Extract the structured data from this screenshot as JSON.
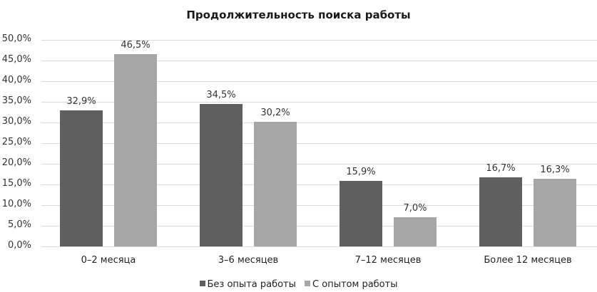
{
  "chart_data": {
    "type": "bar",
    "title": "Продолжительность поиска работы",
    "xlabel": "",
    "ylabel": "",
    "ylim": [
      0,
      50
    ],
    "yticks": [
      "0,0%",
      "5,0%",
      "10,0%",
      "15,0%",
      "20,0%",
      "25,0%",
      "30,0%",
      "35,0%",
      "40,0%",
      "45,0%",
      "50,0%"
    ],
    "grid": true,
    "legend_position": "bottom",
    "categories": [
      "0–2 месяца",
      "3–6 месяцев",
      "7–12 месяцев",
      "Более 12 месяцев"
    ],
    "series": [
      {
        "name": "Без опыта работы",
        "color": "#5f5f5f",
        "values": [
          32.9,
          34.5,
          15.9,
          16.7
        ],
        "labels": [
          "32,9%",
          "34,5%",
          "15,9%",
          "16,7%"
        ]
      },
      {
        "name": "С опытом работы",
        "color": "#a6a6a6",
        "values": [
          46.5,
          30.2,
          7.0,
          16.3
        ],
        "labels": [
          "46,5%",
          "30,2%",
          "7,0%",
          "16,3%"
        ]
      }
    ]
  }
}
